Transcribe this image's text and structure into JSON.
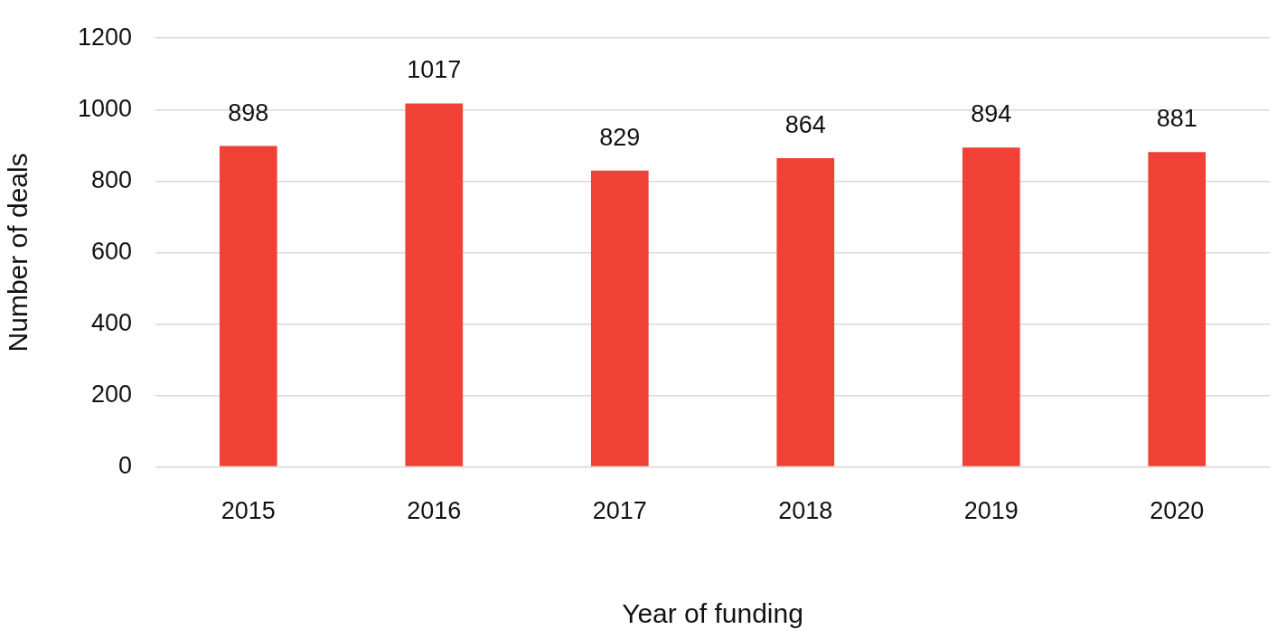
{
  "chart_data": {
    "type": "bar",
    "xlabel": "Year of funding",
    "ylabel": "Number of deals",
    "categories": [
      "2015",
      "2016",
      "2017",
      "2018",
      "2019",
      "2020"
    ],
    "values": [
      898,
      1017,
      829,
      864,
      894,
      881
    ],
    "color": "#ef4136",
    "ylim": [
      0,
      1200
    ],
    "yticks": [
      0,
      200,
      400,
      600,
      800,
      1000,
      1200
    ],
    "grid": "y",
    "data_labels": true
  }
}
